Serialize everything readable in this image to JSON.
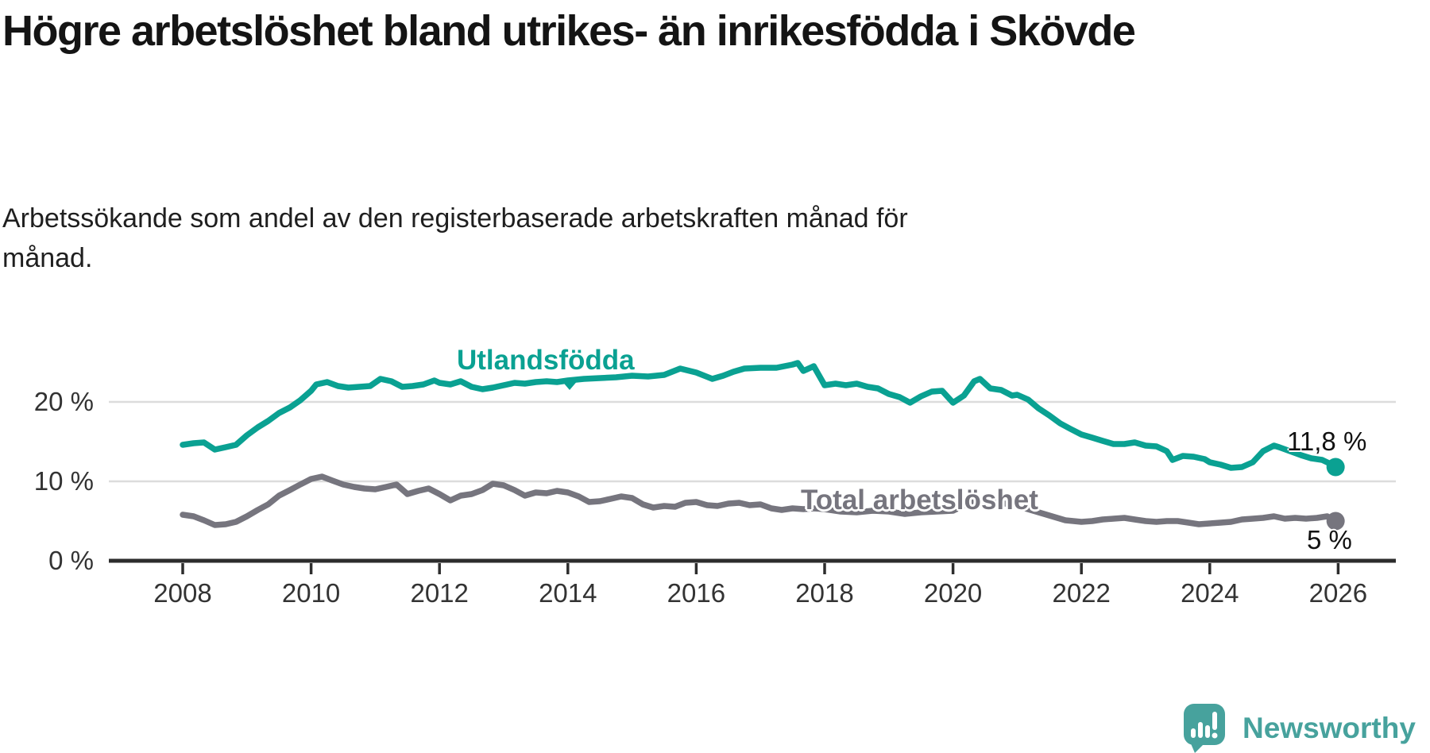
{
  "title": "Högre arbetslöshet bland utrikes- än inrikesfödda i Skövde",
  "subtitle": "Arbetssökande som andel av den registerbaserade arbetskraften månad för månad.",
  "branding": {
    "logo_text": "Newsworthy",
    "logo_color": "#47a29d"
  },
  "colors": {
    "foreign_born_line": "#0aa192",
    "total_line": "#76757e",
    "gridline": "#dcdcdc",
    "axis": "#2d2d2d",
    "text": "#141414"
  },
  "chart_data": {
    "type": "line",
    "title": "Högre arbetslöshet bland utrikes- än inrikesfödda i Skövde",
    "subtitle": "Arbetssökande som andel av den registerbaserade arbetskraften månad för månad.",
    "unit": "%",
    "grid": "horizontal",
    "x_axis": {
      "ticks": [
        2008,
        2010,
        2012,
        2014,
        2016,
        2018,
        2020,
        2022,
        2024,
        2026
      ],
      "range": [
        2008,
        2026.8
      ]
    },
    "y_axis": {
      "tick_values": [
        0,
        10,
        20
      ],
      "tick_labels": [
        "0 %",
        "10 %",
        "20 %"
      ],
      "range": [
        0,
        30
      ]
    },
    "series": [
      {
        "name": "Utlandsfödda",
        "color": "#0aa192",
        "end_label": "11,8 %",
        "end_value": 11.8,
        "points": [
          [
            2008.0,
            14.6
          ],
          [
            2008.17,
            14.8
          ],
          [
            2008.33,
            14.9
          ],
          [
            2008.5,
            14.0
          ],
          [
            2008.67,
            14.3
          ],
          [
            2008.83,
            14.6
          ],
          [
            2009.0,
            15.8
          ],
          [
            2009.17,
            16.8
          ],
          [
            2009.33,
            17.6
          ],
          [
            2009.5,
            18.6
          ],
          [
            2009.67,
            19.3
          ],
          [
            2009.83,
            20.2
          ],
          [
            2010.0,
            21.4
          ],
          [
            2010.08,
            22.2
          ],
          [
            2010.25,
            22.5
          ],
          [
            2010.42,
            22.0
          ],
          [
            2010.58,
            21.8
          ],
          [
            2010.75,
            21.9
          ],
          [
            2010.92,
            22.0
          ],
          [
            2011.08,
            22.9
          ],
          [
            2011.25,
            22.6
          ],
          [
            2011.42,
            21.9
          ],
          [
            2011.58,
            22.0
          ],
          [
            2011.75,
            22.2
          ],
          [
            2011.92,
            22.7
          ],
          [
            2012.0,
            22.4
          ],
          [
            2012.17,
            22.2
          ],
          [
            2012.33,
            22.6
          ],
          [
            2012.5,
            21.9
          ],
          [
            2012.67,
            21.6
          ],
          [
            2012.83,
            21.8
          ],
          [
            2013.0,
            22.1
          ],
          [
            2013.17,
            22.4
          ],
          [
            2013.33,
            22.3
          ],
          [
            2013.5,
            22.5
          ],
          [
            2013.67,
            22.6
          ],
          [
            2013.83,
            22.5
          ],
          [
            2014.0,
            22.7
          ],
          [
            2014.25,
            22.9
          ],
          [
            2014.5,
            23.0
          ],
          [
            2014.75,
            23.1
          ],
          [
            2015.0,
            23.3
          ],
          [
            2015.25,
            23.2
          ],
          [
            2015.5,
            23.4
          ],
          [
            2015.75,
            24.2
          ],
          [
            2016.0,
            23.7
          ],
          [
            2016.25,
            22.9
          ],
          [
            2016.42,
            23.3
          ],
          [
            2016.58,
            23.8
          ],
          [
            2016.75,
            24.2
          ],
          [
            2017.0,
            24.3
          ],
          [
            2017.25,
            24.3
          ],
          [
            2017.5,
            24.7
          ],
          [
            2017.58,
            24.9
          ],
          [
            2017.67,
            23.9
          ],
          [
            2017.83,
            24.5
          ],
          [
            2018.0,
            22.1
          ],
          [
            2018.17,
            22.3
          ],
          [
            2018.33,
            22.1
          ],
          [
            2018.5,
            22.3
          ],
          [
            2018.67,
            21.9
          ],
          [
            2018.83,
            21.7
          ],
          [
            2019.0,
            21.0
          ],
          [
            2019.17,
            20.6
          ],
          [
            2019.33,
            19.9
          ],
          [
            2019.5,
            20.7
          ],
          [
            2019.67,
            21.3
          ],
          [
            2019.83,
            21.4
          ],
          [
            2020.0,
            19.9
          ],
          [
            2020.17,
            20.8
          ],
          [
            2020.33,
            22.6
          ],
          [
            2020.42,
            22.9
          ],
          [
            2020.58,
            21.7
          ],
          [
            2020.75,
            21.5
          ],
          [
            2020.92,
            20.8
          ],
          [
            2021.0,
            20.9
          ],
          [
            2021.17,
            20.3
          ],
          [
            2021.33,
            19.2
          ],
          [
            2021.5,
            18.3
          ],
          [
            2021.67,
            17.3
          ],
          [
            2021.83,
            16.6
          ],
          [
            2022.0,
            15.9
          ],
          [
            2022.17,
            15.5
          ],
          [
            2022.33,
            15.1
          ],
          [
            2022.5,
            14.7
          ],
          [
            2022.67,
            14.7
          ],
          [
            2022.83,
            14.9
          ],
          [
            2023.0,
            14.5
          ],
          [
            2023.17,
            14.4
          ],
          [
            2023.33,
            13.8
          ],
          [
            2023.42,
            12.7
          ],
          [
            2023.58,
            13.2
          ],
          [
            2023.75,
            13.1
          ],
          [
            2023.92,
            12.8
          ],
          [
            2024.0,
            12.4
          ],
          [
            2024.17,
            12.1
          ],
          [
            2024.33,
            11.7
          ],
          [
            2024.5,
            11.8
          ],
          [
            2024.67,
            12.4
          ],
          [
            2024.83,
            13.8
          ],
          [
            2025.0,
            14.5
          ],
          [
            2025.08,
            14.3
          ],
          [
            2025.25,
            13.8
          ],
          [
            2025.42,
            13.3
          ],
          [
            2025.58,
            12.9
          ],
          [
            2025.75,
            12.7
          ],
          [
            2025.88,
            12.2
          ],
          [
            2025.96,
            11.8
          ]
        ]
      },
      {
        "name": "Total arbetslöshet",
        "color": "#76757e",
        "end_label": "5 %",
        "end_value": 5.0,
        "points": [
          [
            2008.0,
            5.8
          ],
          [
            2008.17,
            5.6
          ],
          [
            2008.33,
            5.1
          ],
          [
            2008.5,
            4.5
          ],
          [
            2008.67,
            4.6
          ],
          [
            2008.83,
            4.9
          ],
          [
            2009.0,
            5.6
          ],
          [
            2009.17,
            6.4
          ],
          [
            2009.33,
            7.1
          ],
          [
            2009.5,
            8.2
          ],
          [
            2009.67,
            8.9
          ],
          [
            2009.83,
            9.6
          ],
          [
            2010.0,
            10.3
          ],
          [
            2010.17,
            10.6
          ],
          [
            2010.33,
            10.1
          ],
          [
            2010.5,
            9.6
          ],
          [
            2010.67,
            9.3
          ],
          [
            2010.83,
            9.1
          ],
          [
            2011.0,
            9.0
          ],
          [
            2011.17,
            9.3
          ],
          [
            2011.33,
            9.6
          ],
          [
            2011.5,
            8.4
          ],
          [
            2011.67,
            8.8
          ],
          [
            2011.83,
            9.1
          ],
          [
            2012.0,
            8.4
          ],
          [
            2012.17,
            7.6
          ],
          [
            2012.33,
            8.2
          ],
          [
            2012.5,
            8.4
          ],
          [
            2012.67,
            8.9
          ],
          [
            2012.83,
            9.7
          ],
          [
            2013.0,
            9.5
          ],
          [
            2013.17,
            8.9
          ],
          [
            2013.33,
            8.2
          ],
          [
            2013.5,
            8.6
          ],
          [
            2013.67,
            8.5
          ],
          [
            2013.83,
            8.8
          ],
          [
            2014.0,
            8.6
          ],
          [
            2014.17,
            8.1
          ],
          [
            2014.33,
            7.4
          ],
          [
            2014.5,
            7.5
          ],
          [
            2014.67,
            7.8
          ],
          [
            2014.83,
            8.1
          ],
          [
            2015.0,
            7.9
          ],
          [
            2015.17,
            7.1
          ],
          [
            2015.33,
            6.7
          ],
          [
            2015.5,
            6.9
          ],
          [
            2015.67,
            6.8
          ],
          [
            2015.83,
            7.3
          ],
          [
            2016.0,
            7.4
          ],
          [
            2016.17,
            7.0
          ],
          [
            2016.33,
            6.9
          ],
          [
            2016.5,
            7.2
          ],
          [
            2016.67,
            7.3
          ],
          [
            2016.83,
            7.0
          ],
          [
            2017.0,
            7.1
          ],
          [
            2017.17,
            6.6
          ],
          [
            2017.33,
            6.4
          ],
          [
            2017.5,
            6.6
          ],
          [
            2017.67,
            6.5
          ],
          [
            2017.83,
            6.6
          ],
          [
            2018.0,
            6.5
          ],
          [
            2018.25,
            6.2
          ],
          [
            2018.5,
            6.1
          ],
          [
            2018.75,
            6.3
          ],
          [
            2019.0,
            6.2
          ],
          [
            2019.25,
            5.9
          ],
          [
            2019.5,
            6.1
          ],
          [
            2019.75,
            6.2
          ],
          [
            2020.0,
            6.3
          ],
          [
            2020.25,
            7.3
          ],
          [
            2020.5,
            7.7
          ],
          [
            2020.75,
            7.3
          ],
          [
            2021.0,
            6.9
          ],
          [
            2021.25,
            6.3
          ],
          [
            2021.5,
            5.7
          ],
          [
            2021.75,
            5.1
          ],
          [
            2022.0,
            4.9
          ],
          [
            2022.17,
            5.0
          ],
          [
            2022.33,
            5.2
          ],
          [
            2022.5,
            5.3
          ],
          [
            2022.67,
            5.4
          ],
          [
            2022.83,
            5.2
          ],
          [
            2023.0,
            5.0
          ],
          [
            2023.17,
            4.9
          ],
          [
            2023.33,
            5.0
          ],
          [
            2023.5,
            5.0
          ],
          [
            2023.67,
            4.8
          ],
          [
            2023.83,
            4.6
          ],
          [
            2024.0,
            4.7
          ],
          [
            2024.17,
            4.8
          ],
          [
            2024.33,
            4.9
          ],
          [
            2024.5,
            5.2
          ],
          [
            2024.67,
            5.3
          ],
          [
            2024.83,
            5.4
          ],
          [
            2025.0,
            5.6
          ],
          [
            2025.17,
            5.3
          ],
          [
            2025.33,
            5.4
          ],
          [
            2025.5,
            5.3
          ],
          [
            2025.67,
            5.4
          ],
          [
            2025.83,
            5.6
          ],
          [
            2025.96,
            5.0
          ]
        ]
      }
    ],
    "legend_position": "inline-labels"
  }
}
